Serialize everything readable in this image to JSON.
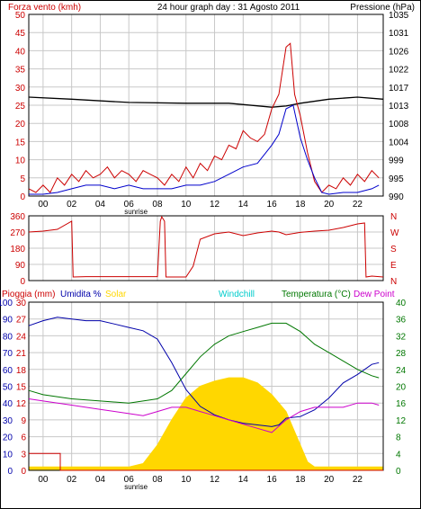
{
  "colors": {
    "grid": "#c8c8c8",
    "frame": "#000000",
    "wind": "#cc0000",
    "wind_avg": "#0000cc",
    "pressure": "#000000",
    "direction": "#cc0000",
    "rain": "#cc0000",
    "humidity": "#0000aa",
    "solar": "#ffd700",
    "windchill": "#00cccc",
    "temperature": "#007700",
    "dewpoint": "#cc00cc"
  },
  "panel1": {
    "title_left": "Forza vento (kmh)",
    "title_center": "24 hour graph day : 31 Agosto 2011",
    "title_right": "Pressione (hPa)",
    "left_ticks": [
      "50",
      "45",
      "40",
      "35",
      "30",
      "25",
      "20",
      "15",
      "10",
      "5",
      "0"
    ],
    "right_ticks": [
      "1035",
      "1031",
      "1026",
      "1022",
      "1017",
      "1013",
      "1008",
      "1004",
      "999",
      "995",
      "990"
    ],
    "hour_labels": [
      "00",
      "02",
      "04",
      "06",
      "08",
      "10",
      "12",
      "14",
      "16",
      "18",
      "20",
      "22"
    ],
    "sunrise_label": "sunrise"
  },
  "panel2": {
    "left_ticks": [
      "360",
      "270",
      "180",
      "90",
      "0"
    ],
    "right_ticks": [
      "N",
      "W",
      "S",
      "E",
      "N"
    ]
  },
  "panel3": {
    "legend": {
      "rain": "Pioggia (mm)",
      "humidity": "Umidita %",
      "solar": "Solar",
      "windchill": "Windchill",
      "temperature": "Temperatura (°C)",
      "dewpoint": "Dew Point"
    },
    "left_ticks_humidity": [
      "100",
      "90",
      "80",
      "70",
      "60",
      "50",
      "40",
      "30",
      "20",
      "10",
      "0"
    ],
    "left_ticks_rain": [
      "30",
      "27",
      "24",
      "21",
      "18",
      "15",
      "12",
      "9",
      "6",
      "3",
      "0"
    ],
    "right_ticks": [
      "40",
      "36",
      "32",
      "28",
      "24",
      "20",
      "16",
      "12",
      "8",
      "4",
      "0"
    ],
    "hour_labels": [
      "00",
      "02",
      "04",
      "06",
      "08",
      "10",
      "12",
      "14",
      "16",
      "18",
      "20",
      "22"
    ],
    "sunrise_label": "sunrise"
  },
  "chart_data": [
    {
      "type": "line",
      "title": "24 hour graph day : 31 Agosto 2011",
      "x_unit": "hour",
      "xlim": [
        -1,
        23.8
      ],
      "ylim": [
        0,
        50
      ],
      "y2lim": [
        990,
        1035
      ],
      "series": [
        {
          "name": "Forza vento (kmh)",
          "axis": "left",
          "x": [
            -1,
            -0.5,
            0,
            0.5,
            1,
            1.5,
            2,
            2.5,
            3,
            3.5,
            4,
            4.5,
            5,
            5.5,
            6,
            6.5,
            7,
            7.5,
            8,
            8.5,
            9,
            9.5,
            10,
            10.5,
            11,
            11.5,
            12,
            12.5,
            13,
            13.5,
            14,
            14.5,
            15,
            15.5,
            16,
            16.5,
            17,
            17.3,
            17.6,
            18,
            18.5,
            19,
            19.5,
            20,
            20.5,
            21,
            21.5,
            22,
            22.5,
            23,
            23.5
          ],
          "y": [
            2,
            1,
            3,
            1,
            5,
            3,
            6,
            4,
            7,
            5,
            6,
            8,
            5,
            7,
            6,
            4,
            7,
            6,
            5,
            3,
            6,
            4,
            8,
            5,
            9,
            7,
            11,
            10,
            14,
            13,
            18,
            16,
            15,
            17,
            24,
            28,
            41,
            42,
            28,
            22,
            12,
            4,
            1,
            3,
            2,
            5,
            3,
            6,
            4,
            7,
            5
          ]
        },
        {
          "name": "",
          "axis": "left",
          "x": [
            -1,
            0,
            1,
            2,
            3,
            4,
            5,
            6,
            7,
            8,
            9,
            10,
            11,
            12,
            13,
            14,
            15,
            16,
            16.5,
            17,
            17.5,
            18,
            18.5,
            19,
            19.5,
            20,
            21,
            22,
            23,
            23.5
          ],
          "y": [
            0.5,
            0.5,
            1,
            2,
            3,
            3,
            2,
            3,
            2,
            2,
            2,
            3,
            3,
            4,
            6,
            8,
            9,
            14,
            17,
            24,
            25,
            16,
            10,
            5,
            1,
            0.5,
            1,
            1,
            2,
            3
          ]
        },
        {
          "name": "Pressione (hPa)",
          "axis": "right",
          "x": [
            -1,
            2,
            6,
            10,
            13,
            16,
            17,
            18,
            20,
            22,
            23.8
          ],
          "y": [
            1014.5,
            1014,
            1013.2,
            1013,
            1013,
            1012,
            1012.3,
            1013,
            1014,
            1014.5,
            1014
          ]
        }
      ]
    },
    {
      "type": "line",
      "x_unit": "hour",
      "xlim": [
        -1,
        23.8
      ],
      "ylim": [
        0,
        360
      ],
      "series": [
        {
          "name": "",
          "x": [
            -1,
            0,
            1,
            2,
            2.1,
            3,
            4,
            5,
            6,
            7,
            8,
            8.2,
            8.3,
            8.5,
            8.6,
            9,
            10,
            10.5,
            11,
            12,
            13,
            14,
            15,
            16,
            16.5,
            17,
            18,
            19,
            20,
            21,
            22,
            22.5,
            22.6,
            23,
            23.8
          ],
          "y": [
            270,
            275,
            285,
            330,
            20,
            22,
            22,
            22,
            22,
            22,
            22,
            330,
            355,
            330,
            20,
            20,
            20,
            80,
            230,
            260,
            270,
            250,
            265,
            275,
            270,
            255,
            268,
            275,
            280,
            295,
            315,
            320,
            20,
            25,
            20
          ]
        }
      ]
    },
    {
      "type": "line",
      "x_unit": "hour",
      "xlim": [
        -1,
        23.8
      ],
      "y_humidity_lim": [
        0,
        100
      ],
      "y_rain_lim": [
        0,
        30
      ],
      "y_temp_lim": [
        0,
        40
      ],
      "series": [
        {
          "name": "Pioggia (mm)",
          "axis": "rain",
          "x": [
            -1,
            1.2,
            1.2,
            23.8
          ],
          "y": [
            3,
            3,
            0,
            0
          ]
        },
        {
          "name": "Umidita %",
          "axis": "humidity",
          "x": [
            -1,
            0,
            1,
            2,
            3,
            4,
            5,
            6,
            7,
            8,
            9,
            10,
            11,
            12,
            13,
            14,
            15,
            16,
            16.5,
            17,
            18,
            19,
            20,
            21,
            22,
            23,
            23.5
          ],
          "y": [
            86,
            89,
            91,
            90,
            89,
            89,
            87,
            85,
            83,
            78,
            64,
            48,
            38,
            33,
            30,
            28,
            27,
            26,
            27,
            31,
            32,
            36,
            43,
            52,
            57,
            63,
            64
          ]
        },
        {
          "name": "Solar",
          "axis": "humidity",
          "x": [
            -1,
            6,
            7,
            8,
            9,
            10,
            11,
            12,
            13,
            14,
            15,
            16,
            17,
            17.5,
            18,
            18.5,
            19,
            23.8
          ],
          "y": [
            2,
            2,
            4,
            15,
            30,
            43,
            50,
            53,
            55,
            55,
            52,
            45,
            35,
            25,
            15,
            5,
            2,
            2
          ]
        },
        {
          "name": "Temperatura (°C)",
          "axis": "temp",
          "x": [
            -1,
            0,
            2,
            4,
            6,
            7,
            8,
            9,
            10,
            11,
            12,
            13,
            14,
            15,
            16,
            17,
            18,
            19,
            20,
            21,
            22,
            23,
            23.5
          ],
          "y": [
            19,
            18,
            17,
            16.5,
            16,
            16.5,
            17,
            19,
            23,
            27,
            30,
            32,
            33,
            34,
            35,
            35,
            33,
            30,
            28,
            26,
            24,
            22.5,
            22
          ]
        },
        {
          "name": "Dew Point",
          "axis": "temp",
          "x": [
            -1,
            0,
            2,
            4,
            6,
            7,
            8,
            9,
            10,
            11,
            12,
            13,
            14,
            15,
            16,
            17,
            18,
            19,
            20,
            21,
            22,
            23,
            23.5
          ],
          "y": [
            17,
            16.5,
            15.5,
            14.5,
            13.5,
            13,
            14,
            15,
            15,
            14,
            13,
            12,
            11,
            10,
            9,
            12,
            14,
            15,
            15,
            15,
            16,
            16,
            15.5
          ]
        },
        {
          "name": "Windchill",
          "axis": "temp",
          "x": [],
          "y": []
        }
      ]
    }
  ]
}
